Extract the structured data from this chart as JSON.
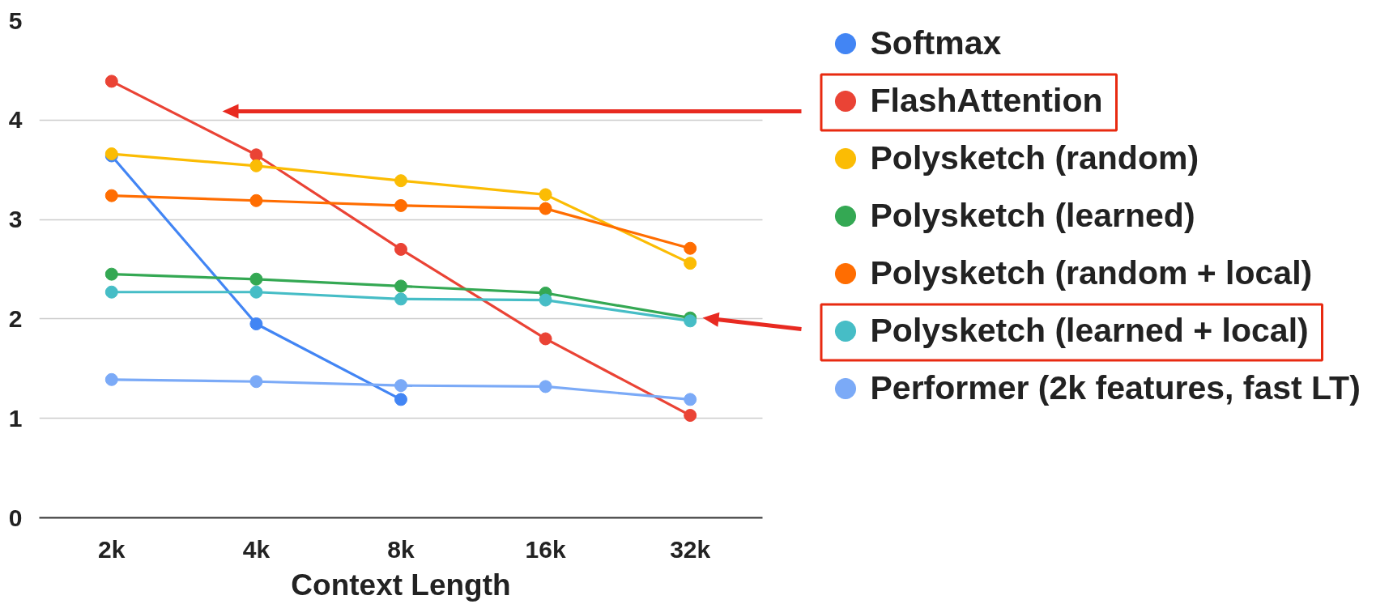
{
  "chart_data": {
    "type": "line",
    "xlabel": "Context Length",
    "categories": [
      "2k",
      "4k",
      "8k",
      "16k",
      "32k"
    ],
    "ylim": [
      0,
      5
    ],
    "yticks": [
      0,
      1,
      2,
      3,
      4,
      5
    ],
    "grid": "y",
    "legend": "right",
    "marker": "circle",
    "line_style": "solid",
    "series": [
      {
        "name": "Softmax",
        "color": "#4285f4",
        "values": [
          3.64,
          1.95,
          1.19,
          null,
          null
        ]
      },
      {
        "name": "FlashAttention",
        "color": "#ea4335",
        "values": [
          4.39,
          3.65,
          2.7,
          1.8,
          1.03
        ]
      },
      {
        "name": "Polysketch (random)",
        "color": "#fbbc04",
        "values": [
          3.66,
          3.54,
          3.39,
          3.25,
          2.56
        ]
      },
      {
        "name": "Polysketch (learned)",
        "color": "#34a853",
        "values": [
          2.45,
          2.4,
          2.33,
          2.26,
          2.01
        ]
      },
      {
        "name": "Polysketch (random + local)",
        "color": "#ff6d01",
        "values": [
          3.24,
          3.19,
          3.14,
          3.11,
          2.71
        ]
      },
      {
        "name": "Polysketch (learned + local)",
        "color": "#46bdc6",
        "values": [
          2.27,
          2.27,
          2.2,
          2.19,
          1.98
        ]
      },
      {
        "name": "Performer (2k features, fast LT)",
        "color": "#7baaf7",
        "values": [
          1.39,
          1.37,
          1.33,
          1.32,
          1.19
        ]
      }
    ]
  }
}
